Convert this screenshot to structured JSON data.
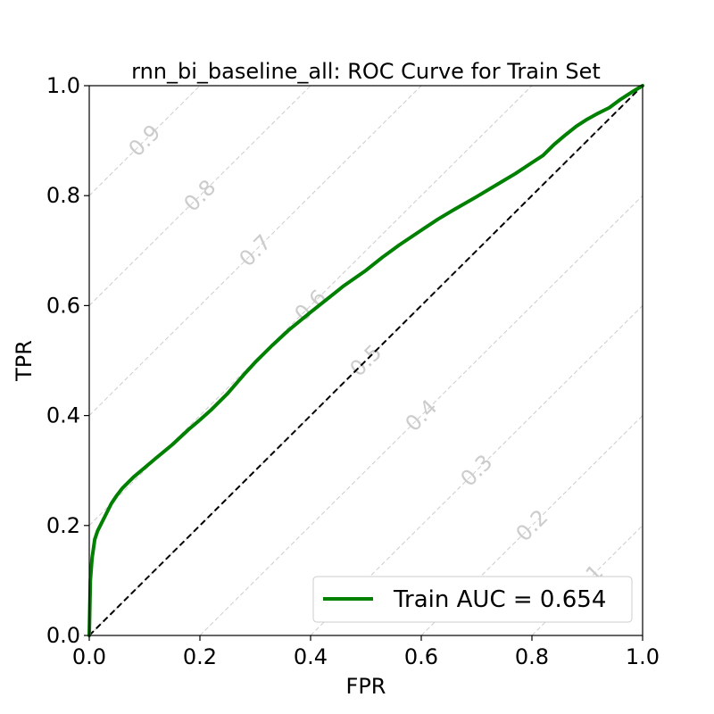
{
  "chart_data": {
    "type": "line",
    "title": "rnn_bi_baseline_all: ROC Curve for Train Set",
    "xlabel": "FPR",
    "ylabel": "TPR",
    "xlim": [
      0,
      1
    ],
    "ylim": [
      0,
      1
    ],
    "xticks": [
      "0.0",
      "0.2",
      "0.4",
      "0.6",
      "0.8",
      "1.0"
    ],
    "yticks": [
      "0.0",
      "0.2",
      "0.4",
      "0.6",
      "0.8",
      "1.0"
    ],
    "legend_location": "lower-right",
    "series": [
      {
        "name": "Train AUC = 0.654",
        "color": "#008000",
        "x": [
          0,
          0.002,
          0.005,
          0.01,
          0.015,
          0.02,
          0.03,
          0.04,
          0.05,
          0.06,
          0.08,
          0.1,
          0.12,
          0.15,
          0.18,
          0.2,
          0.22,
          0.25,
          0.28,
          0.3,
          0.33,
          0.36,
          0.4,
          0.43,
          0.46,
          0.5,
          0.53,
          0.56,
          0.6,
          0.63,
          0.66,
          0.7,
          0.74,
          0.77,
          0.8,
          0.82,
          0.84,
          0.86,
          0.88,
          0.9,
          0.92,
          0.94,
          0.96,
          0.98,
          1.0
        ],
        "y": [
          0,
          0.1,
          0.14,
          0.175,
          0.19,
          0.2,
          0.22,
          0.24,
          0.255,
          0.268,
          0.288,
          0.305,
          0.322,
          0.347,
          0.375,
          0.392,
          0.41,
          0.44,
          0.475,
          0.497,
          0.527,
          0.555,
          0.588,
          0.612,
          0.636,
          0.664,
          0.688,
          0.71,
          0.737,
          0.757,
          0.775,
          0.798,
          0.822,
          0.84,
          0.86,
          0.873,
          0.893,
          0.91,
          0.926,
          0.939,
          0.95,
          0.96,
          0.975,
          0.988,
          1.0
        ]
      }
    ],
    "reference_line": {
      "x": [
        0,
        1
      ],
      "y": [
        0,
        1
      ],
      "color": "#000000",
      "style": "dashed"
    },
    "iso_lines": {
      "color": "#cccccc",
      "labels": [
        "0.9",
        "0.8",
        "0.7",
        "0.6",
        "0.5",
        "0.4",
        "0.3",
        "0.2",
        "0.1"
      ],
      "offsets": [
        0.8,
        0.6,
        0.4,
        0.2,
        0.0,
        -0.2,
        -0.4,
        -0.6,
        -0.8
      ],
      "label_positions": [
        {
          "x": 0.1,
          "y": 0.9
        },
        {
          "x": 0.2,
          "y": 0.8
        },
        {
          "x": 0.3,
          "y": 0.7
        },
        {
          "x": 0.4,
          "y": 0.6
        },
        {
          "x": 0.5,
          "y": 0.5
        },
        {
          "x": 0.6,
          "y": 0.4
        },
        {
          "x": 0.7,
          "y": 0.3
        },
        {
          "x": 0.8,
          "y": 0.2
        },
        {
          "x": 0.9,
          "y": 0.1
        }
      ]
    }
  }
}
